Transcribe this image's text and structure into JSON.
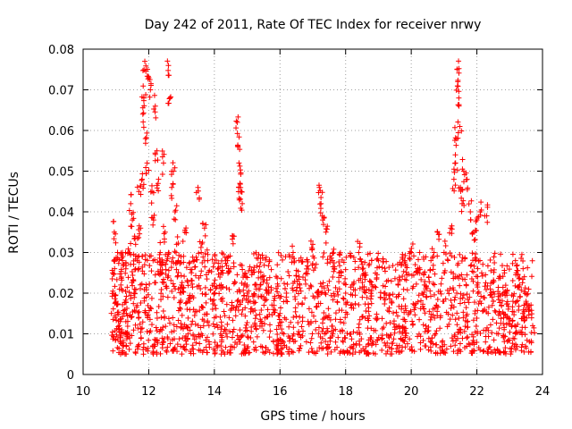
{
  "chart_data": {
    "type": "scatter",
    "title": "Day 242 of 2011, Rate Of TEC Index for receiver nrwy",
    "xlabel": "GPS time / hours",
    "ylabel": "ROTI / TECUs",
    "xlim": [
      10,
      24
    ],
    "ylim": [
      0,
      0.08
    ],
    "x_ticks": [
      10,
      12,
      14,
      16,
      18,
      20,
      22,
      24
    ],
    "y_ticks": [
      0,
      0.01,
      0.02,
      0.03,
      0.04,
      0.05,
      0.06,
      0.07,
      0.08
    ],
    "x_tick_labels": [
      "10",
      "12",
      "14",
      "16",
      "18",
      "20",
      "22",
      "24"
    ],
    "y_tick_labels": [
      "0",
      "0.01",
      "0.02",
      "0.03",
      "0.04",
      "0.05",
      "0.06",
      "0.07",
      "0.08"
    ],
    "grid": true,
    "marker": "+",
    "series": [
      {
        "name": "nrwy",
        "color": "#ff0000",
        "points": [
          [
            10.9,
            0.025
          ],
          [
            10.95,
            0.035
          ],
          [
            11.0,
            0.018
          ],
          [
            11.05,
            0.03
          ],
          [
            11.1,
            0.012
          ],
          [
            11.15,
            0.022
          ],
          [
            11.2,
            0.028
          ],
          [
            11.25,
            0.015
          ],
          [
            11.3,
            0.026
          ],
          [
            11.35,
            0.01
          ],
          [
            11.4,
            0.03
          ],
          [
            11.45,
            0.042
          ],
          [
            11.5,
            0.038
          ],
          [
            11.55,
            0.02
          ],
          [
            11.6,
            0.032
          ],
          [
            11.65,
            0.028
          ],
          [
            11.7,
            0.045
          ],
          [
            11.75,
            0.036
          ],
          [
            11.8,
            0.048
          ],
          [
            11.82,
            0.064
          ],
          [
            11.85,
            0.068
          ],
          [
            11.88,
            0.077
          ],
          [
            11.9,
            0.058
          ],
          [
            11.95,
            0.052
          ],
          [
            12.0,
            0.073
          ],
          [
            12.05,
            0.07
          ],
          [
            12.1,
            0.045
          ],
          [
            12.15,
            0.038
          ],
          [
            12.2,
            0.066
          ],
          [
            12.25,
            0.055
          ],
          [
            12.3,
            0.048
          ],
          [
            12.35,
            0.03
          ],
          [
            12.4,
            0.025
          ],
          [
            12.45,
            0.052
          ],
          [
            12.5,
            0.035
          ],
          [
            12.55,
            0.028
          ],
          [
            12.6,
            0.076
          ],
          [
            12.65,
            0.068
          ],
          [
            12.7,
            0.046
          ],
          [
            12.75,
            0.05
          ],
          [
            12.8,
            0.04
          ],
          [
            12.85,
            0.032
          ],
          [
            12.9,
            0.028
          ],
          [
            13.0,
            0.022
          ],
          [
            13.1,
            0.035
          ],
          [
            13.2,
            0.018
          ],
          [
            13.3,
            0.025
          ],
          [
            13.5,
            0.046
          ],
          [
            13.6,
            0.03
          ],
          [
            13.7,
            0.036
          ],
          [
            13.8,
            0.028
          ],
          [
            14.0,
            0.02
          ],
          [
            14.2,
            0.025
          ],
          [
            14.4,
            0.028
          ],
          [
            14.6,
            0.034
          ],
          [
            14.7,
            0.062
          ],
          [
            14.72,
            0.056
          ],
          [
            14.75,
            0.052
          ],
          [
            14.78,
            0.047
          ],
          [
            14.8,
            0.045
          ],
          [
            14.85,
            0.042
          ],
          [
            14.9,
            0.022
          ],
          [
            15.0,
            0.02
          ],
          [
            15.2,
            0.018
          ],
          [
            15.4,
            0.022
          ],
          [
            15.6,
            0.02
          ],
          [
            15.8,
            0.016
          ],
          [
            16.0,
            0.015
          ],
          [
            16.2,
            0.02
          ],
          [
            16.4,
            0.03
          ],
          [
            16.6,
            0.022
          ],
          [
            16.8,
            0.025
          ],
          [
            17.0,
            0.032
          ],
          [
            17.2,
            0.046
          ],
          [
            17.25,
            0.042
          ],
          [
            17.3,
            0.038
          ],
          [
            17.4,
            0.035
          ],
          [
            17.6,
            0.028
          ],
          [
            17.8,
            0.025
          ],
          [
            18.0,
            0.02
          ],
          [
            18.2,
            0.022
          ],
          [
            18.4,
            0.03
          ],
          [
            18.6,
            0.025
          ],
          [
            18.8,
            0.022
          ],
          [
            19.0,
            0.028
          ],
          [
            19.2,
            0.02
          ],
          [
            19.4,
            0.018
          ],
          [
            19.6,
            0.022
          ],
          [
            19.8,
            0.028
          ],
          [
            20.0,
            0.03
          ],
          [
            20.2,
            0.025
          ],
          [
            20.4,
            0.022
          ],
          [
            20.6,
            0.028
          ],
          [
            20.8,
            0.035
          ],
          [
            21.0,
            0.03
          ],
          [
            21.2,
            0.036
          ],
          [
            21.3,
            0.048
          ],
          [
            21.35,
            0.052
          ],
          [
            21.38,
            0.058
          ],
          [
            21.4,
            0.075
          ],
          [
            21.42,
            0.072
          ],
          [
            21.45,
            0.068
          ],
          [
            21.48,
            0.061
          ],
          [
            21.5,
            0.046
          ],
          [
            21.55,
            0.042
          ],
          [
            21.6,
            0.05
          ],
          [
            21.7,
            0.048
          ],
          [
            21.8,
            0.04
          ],
          [
            21.9,
            0.035
          ],
          [
            22.0,
            0.038
          ],
          [
            22.1,
            0.04
          ],
          [
            22.3,
            0.039
          ],
          [
            22.5,
            0.018
          ],
          [
            22.7,
            0.015
          ],
          [
            22.9,
            0.02
          ],
          [
            23.1,
            0.018
          ],
          [
            23.2,
            0.025
          ],
          [
            23.3,
            0.022
          ],
          [
            23.4,
            0.015
          ],
          [
            23.5,
            0.018
          ],
          [
            23.6,
            0.016
          ],
          [
            23.7,
            0.012
          ]
        ],
        "band": {
          "x_start": 10.85,
          "x_end": 23.7,
          "low_value": 0.005,
          "high_value": 0.02,
          "point_count": 1800
        }
      }
    ]
  }
}
